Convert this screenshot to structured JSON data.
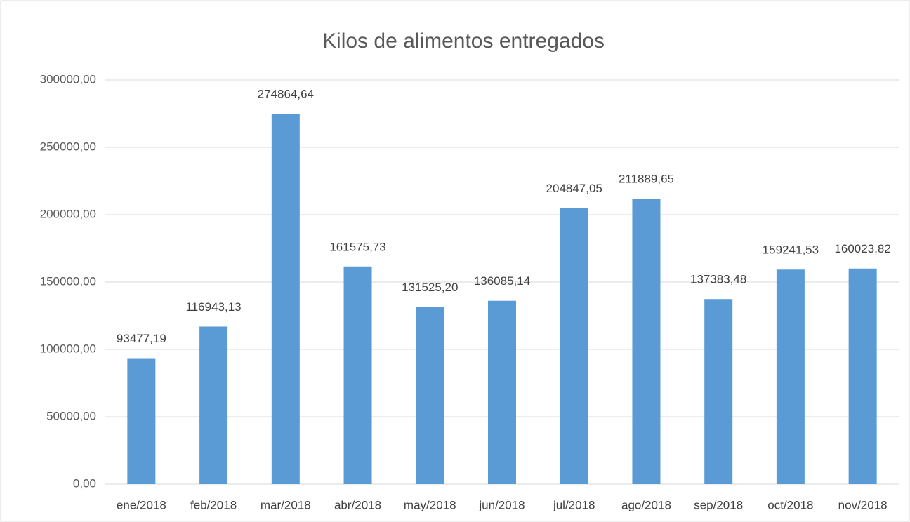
{
  "chart_data": {
    "type": "bar",
    "title": "Kilos de alimentos entregados",
    "categories": [
      "ene/2018",
      "feb/2018",
      "mar/2018",
      "abr/2018",
      "may/2018",
      "jun/2018",
      "jul/2018",
      "ago/2018",
      "sep/2018",
      "oct/2018",
      "nov/2018"
    ],
    "values": [
      93477.19,
      116943.13,
      274864.64,
      161575.73,
      131525.2,
      136085.14,
      204847.05,
      211889.65,
      137383.48,
      159241.53,
      160023.82
    ],
    "value_labels": [
      "93477,19",
      "116943,13",
      "274864,64",
      "161575,73",
      "131525,20",
      "136085,14",
      "204847,05",
      "211889,65",
      "137383,48",
      "159241,53",
      "160023,82"
    ],
    "color": "#5b9bd5",
    "ylim": [
      0,
      300000
    ],
    "yticks": [
      {
        "value": 0,
        "label": "0,00"
      },
      {
        "value": 50000,
        "label": "50000,00"
      },
      {
        "value": 100000,
        "label": "100000,00"
      },
      {
        "value": 150000,
        "label": "150000,00"
      },
      {
        "value": 200000,
        "label": "200000,00"
      },
      {
        "value": 250000,
        "label": "250000,00"
      },
      {
        "value": 300000,
        "label": "300000,00"
      }
    ],
    "grid": true
  }
}
